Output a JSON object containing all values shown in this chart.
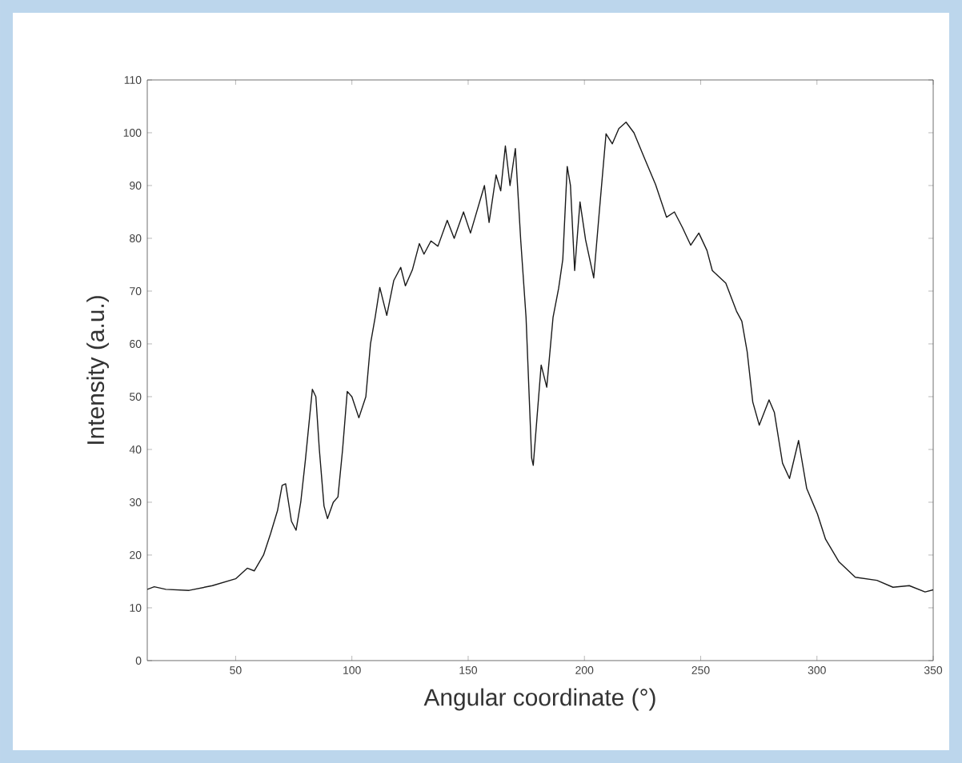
{
  "chart_data": {
    "type": "line",
    "xlabel": "Angular coordinate (°)",
    "ylabel": "Intensity (a.u.)",
    "xlim": [
      12,
      350
    ],
    "ylim": [
      0,
      110
    ],
    "xticks": [
      50,
      100,
      150,
      200,
      250,
      300,
      350
    ],
    "yticks": [
      0,
      10,
      20,
      30,
      40,
      50,
      60,
      70,
      80,
      90,
      100,
      110
    ],
    "grid": false,
    "marker": "none",
    "line_style": "solid",
    "series": [
      {
        "color": "#1a1a1a",
        "x": [
          12,
          15,
          20,
          30,
          40,
          50,
          55,
          58,
          62,
          65,
          68,
          70,
          71.5,
          74,
          76,
          78,
          80,
          83,
          84.5,
          86,
          88,
          89.5,
          92,
          94,
          96,
          98,
          100,
          103,
          106,
          108,
          110,
          112,
          115,
          118,
          121,
          123,
          126,
          129,
          131,
          134,
          137,
          141,
          144,
          148,
          151,
          155,
          157,
          159,
          162,
          164,
          166,
          168,
          170.3,
          172.6,
          174.9,
          177.3,
          178,
          179.6,
          181.4,
          183.8,
          186.5,
          188.9,
          190.7,
          192.6,
          194,
          195.8,
          198.1,
          200.5,
          204,
          206.3,
          209.3,
          212,
          214.8,
          217.9,
          221.3,
          226,
          230.6,
          235.3,
          238.7,
          242.2,
          245.7,
          249.2,
          252.7,
          255,
          260.8,
          265.4,
          267.7,
          270,
          272.4,
          275.2,
          279.4,
          281.7,
          285.2,
          288.2,
          292.1,
          295.6,
          300.2,
          303.7,
          309.5,
          316.5,
          325.8,
          332.7,
          339.7,
          346.5,
          350
        ],
        "values": [
          13.5,
          14,
          13.5,
          13.3,
          14.2,
          15.5,
          17.5,
          17,
          20,
          24,
          28.4,
          33.2,
          33.5,
          26.4,
          24.7,
          30,
          38,
          51.4,
          50,
          40,
          29.3,
          26.9,
          30,
          31,
          40,
          51,
          50,
          46,
          50,
          60,
          65,
          70.7,
          65.4,
          72,
          74.5,
          71,
          74,
          79,
          77,
          79.5,
          78.5,
          83.4,
          80,
          85,
          81,
          87,
          90,
          83,
          92,
          89,
          97.5,
          90,
          97,
          79.7,
          65,
          38.4,
          37,
          46,
          56,
          51.8,
          65,
          70.5,
          76,
          93.6,
          90,
          73.9,
          86.9,
          79.7,
          72.5,
          84.5,
          99.8,
          97.9,
          100.8,
          102,
          100,
          95,
          90.2,
          84,
          85,
          82,
          78.7,
          81,
          77.7,
          73.9,
          71.5,
          66.2,
          64.3,
          58.5,
          49,
          44.6,
          49.4,
          47,
          37.4,
          34.5,
          41.7,
          32.6,
          27.8,
          23,
          18.7,
          15.8,
          15.2,
          13.9,
          14.2,
          13,
          13.4
        ]
      }
    ]
  }
}
